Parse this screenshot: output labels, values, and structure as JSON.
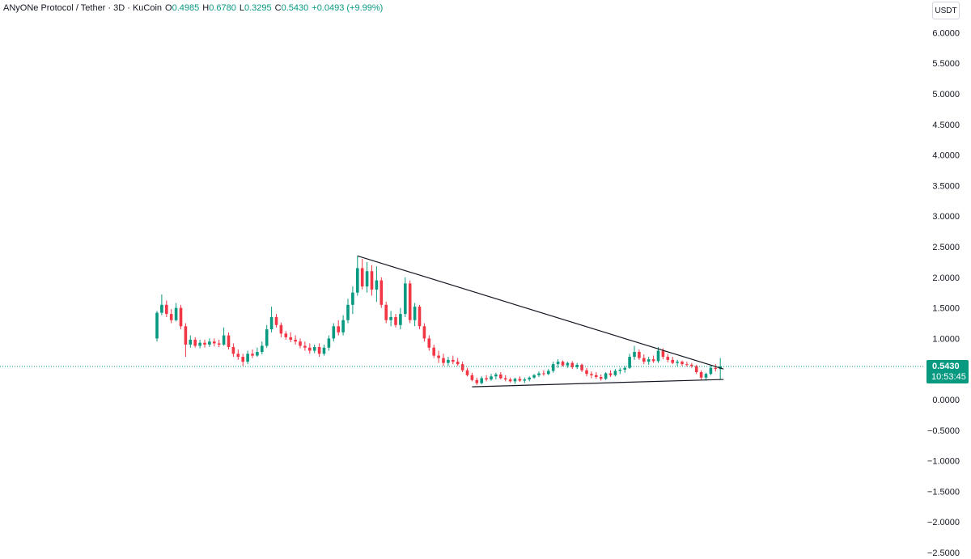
{
  "header": {
    "symbol": "ANyONe Protocol / Tether · 3D · KuCoin",
    "open_label": "O",
    "open": "0.4985",
    "high_label": "H",
    "high": "0.6780",
    "low_label": "L",
    "low": "0.3295",
    "close_label": "C",
    "close": "0.5430",
    "change": "+0.0493 (+9.99%)"
  },
  "currency_button": "USDT",
  "colors": {
    "up": "#089981",
    "down": "#f23645",
    "trendline": "#131722",
    "price_line": "#089981"
  },
  "chart_data": {
    "type": "candlestick",
    "title": "ANyONe Protocol / Tether · 3D · KuCoin",
    "y_ticks": [
      "6.0000",
      "5.5000",
      "5.0000",
      "4.5000",
      "4.0000",
      "3.5000",
      "3.0000",
      "2.5000",
      "2.0000",
      "1.5000",
      "1.0000",
      "0.5000",
      "0.0000",
      "−0.5000",
      "−1.0000",
      "−1.5000",
      "−2.0000",
      "−2.5000"
    ],
    "ylim": [
      -2.6,
      6.3
    ],
    "last_price": "0.5430",
    "countdown": "10:53:45",
    "candles": [
      [
        1.0,
        1.45,
        0.95,
        1.42
      ],
      [
        1.42,
        1.72,
        1.38,
        1.55
      ],
      [
        1.55,
        1.62,
        1.35,
        1.4
      ],
      [
        1.4,
        1.48,
        1.25,
        1.3
      ],
      [
        1.3,
        1.58,
        1.28,
        1.5
      ],
      [
        1.5,
        1.55,
        1.15,
        1.2
      ],
      [
        1.2,
        1.25,
        0.7,
        0.9
      ],
      [
        0.9,
        1.05,
        0.85,
        0.98
      ],
      [
        0.98,
        1.02,
        0.85,
        0.88
      ],
      [
        0.88,
        0.98,
        0.84,
        0.93
      ],
      [
        0.93,
        0.98,
        0.85,
        0.9
      ],
      [
        0.9,
        1.0,
        0.86,
        0.95
      ],
      [
        0.95,
        1.0,
        0.87,
        0.92
      ],
      [
        0.92,
        0.98,
        0.86,
        0.9
      ],
      [
        0.9,
        1.18,
        0.88,
        1.05
      ],
      [
        1.05,
        1.1,
        0.82,
        0.86
      ],
      [
        0.86,
        0.92,
        0.7,
        0.75
      ],
      [
        0.75,
        0.82,
        0.65,
        0.7
      ],
      [
        0.7,
        0.75,
        0.55,
        0.62
      ],
      [
        0.62,
        0.8,
        0.58,
        0.75
      ],
      [
        0.75,
        0.82,
        0.68,
        0.72
      ],
      [
        0.72,
        0.85,
        0.7,
        0.78
      ],
      [
        0.78,
        0.95,
        0.74,
        0.88
      ],
      [
        0.88,
        1.22,
        0.85,
        1.15
      ],
      [
        1.15,
        1.52,
        1.1,
        1.35
      ],
      [
        1.35,
        1.4,
        1.18,
        1.22
      ],
      [
        1.22,
        1.26,
        1.02,
        1.08
      ],
      [
        1.08,
        1.12,
        0.98,
        1.02
      ],
      [
        1.02,
        1.1,
        0.94,
        0.98
      ],
      [
        0.98,
        1.05,
        0.9,
        0.95
      ],
      [
        0.95,
        1.0,
        0.84,
        0.88
      ],
      [
        0.88,
        0.95,
        0.8,
        0.85
      ],
      [
        0.85,
        0.92,
        0.75,
        0.8
      ],
      [
        0.8,
        0.9,
        0.76,
        0.86
      ],
      [
        0.86,
        0.92,
        0.7,
        0.75
      ],
      [
        0.75,
        0.9,
        0.72,
        0.85
      ],
      [
        0.85,
        1.05,
        0.8,
        1.0
      ],
      [
        1.0,
        1.25,
        0.95,
        1.2
      ],
      [
        1.2,
        1.3,
        1.05,
        1.1
      ],
      [
        1.1,
        1.38,
        1.05,
        1.3
      ],
      [
        1.3,
        1.65,
        1.25,
        1.55
      ],
      [
        1.55,
        1.85,
        1.4,
        1.75
      ],
      [
        1.75,
        2.35,
        1.7,
        2.15
      ],
      [
        2.15,
        2.3,
        1.8,
        1.85
      ],
      [
        1.85,
        2.25,
        1.75,
        2.1
      ],
      [
        2.1,
        2.2,
        1.7,
        1.8
      ],
      [
        1.8,
        2.18,
        1.6,
        1.95
      ],
      [
        1.95,
        2.0,
        1.5,
        1.55
      ],
      [
        1.55,
        1.6,
        1.25,
        1.3
      ],
      [
        1.3,
        1.45,
        1.2,
        1.35
      ],
      [
        1.35,
        1.4,
        1.18,
        1.22
      ],
      [
        1.22,
        1.5,
        1.15,
        1.4
      ],
      [
        1.4,
        2.0,
        1.35,
        1.9
      ],
      [
        1.9,
        1.95,
        1.25,
        1.3
      ],
      [
        1.3,
        1.58,
        1.2,
        1.52
      ],
      [
        1.52,
        1.55,
        1.15,
        1.2
      ],
      [
        1.2,
        1.25,
        0.95,
        1.0
      ],
      [
        1.0,
        1.05,
        0.8,
        0.85
      ],
      [
        0.85,
        0.9,
        0.68,
        0.72
      ],
      [
        0.72,
        0.8,
        0.6,
        0.68
      ],
      [
        0.68,
        0.75,
        0.55,
        0.6
      ],
      [
        0.6,
        0.7,
        0.55,
        0.65
      ],
      [
        0.65,
        0.72,
        0.58,
        0.62
      ],
      [
        0.62,
        0.68,
        0.55,
        0.58
      ],
      [
        0.58,
        0.62,
        0.45,
        0.48
      ],
      [
        0.48,
        0.52,
        0.38,
        0.4
      ],
      [
        0.4,
        0.44,
        0.3,
        0.32
      ],
      [
        0.32,
        0.36,
        0.24,
        0.27
      ],
      [
        0.27,
        0.38,
        0.25,
        0.35
      ],
      [
        0.35,
        0.4,
        0.3,
        0.33
      ],
      [
        0.33,
        0.42,
        0.31,
        0.38
      ],
      [
        0.38,
        0.44,
        0.33,
        0.41
      ],
      [
        0.41,
        0.45,
        0.33,
        0.35
      ],
      [
        0.35,
        0.4,
        0.3,
        0.33
      ],
      [
        0.33,
        0.36,
        0.28,
        0.3
      ],
      [
        0.3,
        0.36,
        0.26,
        0.34
      ],
      [
        0.34,
        0.38,
        0.29,
        0.31
      ],
      [
        0.31,
        0.36,
        0.27,
        0.33
      ],
      [
        0.33,
        0.38,
        0.3,
        0.36
      ],
      [
        0.36,
        0.42,
        0.34,
        0.4
      ],
      [
        0.4,
        0.46,
        0.37,
        0.43
      ],
      [
        0.43,
        0.48,
        0.39,
        0.42
      ],
      [
        0.42,
        0.5,
        0.4,
        0.47
      ],
      [
        0.47,
        0.62,
        0.44,
        0.58
      ],
      [
        0.58,
        0.66,
        0.52,
        0.62
      ],
      [
        0.62,
        0.64,
        0.54,
        0.56
      ],
      [
        0.56,
        0.62,
        0.52,
        0.6
      ],
      [
        0.6,
        0.63,
        0.5,
        0.53
      ],
      [
        0.53,
        0.6,
        0.5,
        0.57
      ],
      [
        0.57,
        0.59,
        0.45,
        0.48
      ],
      [
        0.48,
        0.52,
        0.38,
        0.42
      ],
      [
        0.42,
        0.46,
        0.35,
        0.4
      ],
      [
        0.4,
        0.45,
        0.34,
        0.37
      ],
      [
        0.37,
        0.41,
        0.31,
        0.34
      ],
      [
        0.34,
        0.45,
        0.32,
        0.43
      ],
      [
        0.43,
        0.48,
        0.37,
        0.4
      ],
      [
        0.4,
        0.5,
        0.38,
        0.47
      ],
      [
        0.47,
        0.52,
        0.42,
        0.49
      ],
      [
        0.49,
        0.55,
        0.44,
        0.52
      ],
      [
        0.52,
        0.75,
        0.5,
        0.7
      ],
      [
        0.7,
        0.88,
        0.65,
        0.78
      ],
      [
        0.78,
        0.82,
        0.65,
        0.68
      ],
      [
        0.68,
        0.74,
        0.58,
        0.62
      ],
      [
        0.62,
        0.7,
        0.57,
        0.66
      ],
      [
        0.66,
        0.72,
        0.6,
        0.63
      ],
      [
        0.63,
        0.86,
        0.6,
        0.8
      ],
      [
        0.8,
        0.84,
        0.66,
        0.7
      ],
      [
        0.7,
        0.75,
        0.61,
        0.65
      ],
      [
        0.65,
        0.7,
        0.58,
        0.6
      ],
      [
        0.6,
        0.65,
        0.55,
        0.62
      ],
      [
        0.62,
        0.64,
        0.55,
        0.58
      ],
      [
        0.58,
        0.62,
        0.54,
        0.57
      ],
      [
        0.57,
        0.6,
        0.52,
        0.55
      ],
      [
        0.55,
        0.57,
        0.42,
        0.45
      ],
      [
        0.45,
        0.48,
        0.32,
        0.36
      ],
      [
        0.36,
        0.44,
        0.31,
        0.42
      ],
      [
        0.42,
        0.56,
        0.4,
        0.52
      ],
      [
        0.52,
        0.58,
        0.46,
        0.5
      ],
      [
        0.5,
        0.68,
        0.33,
        0.54
      ]
    ],
    "trendlines": [
      {
        "name": "upper",
        "from": [
          42,
          2.35
        ],
        "to": [
          118,
          0.5
        ]
      },
      {
        "name": "lower",
        "from": [
          66,
          0.21
        ],
        "to": [
          118,
          0.33
        ]
      }
    ]
  }
}
